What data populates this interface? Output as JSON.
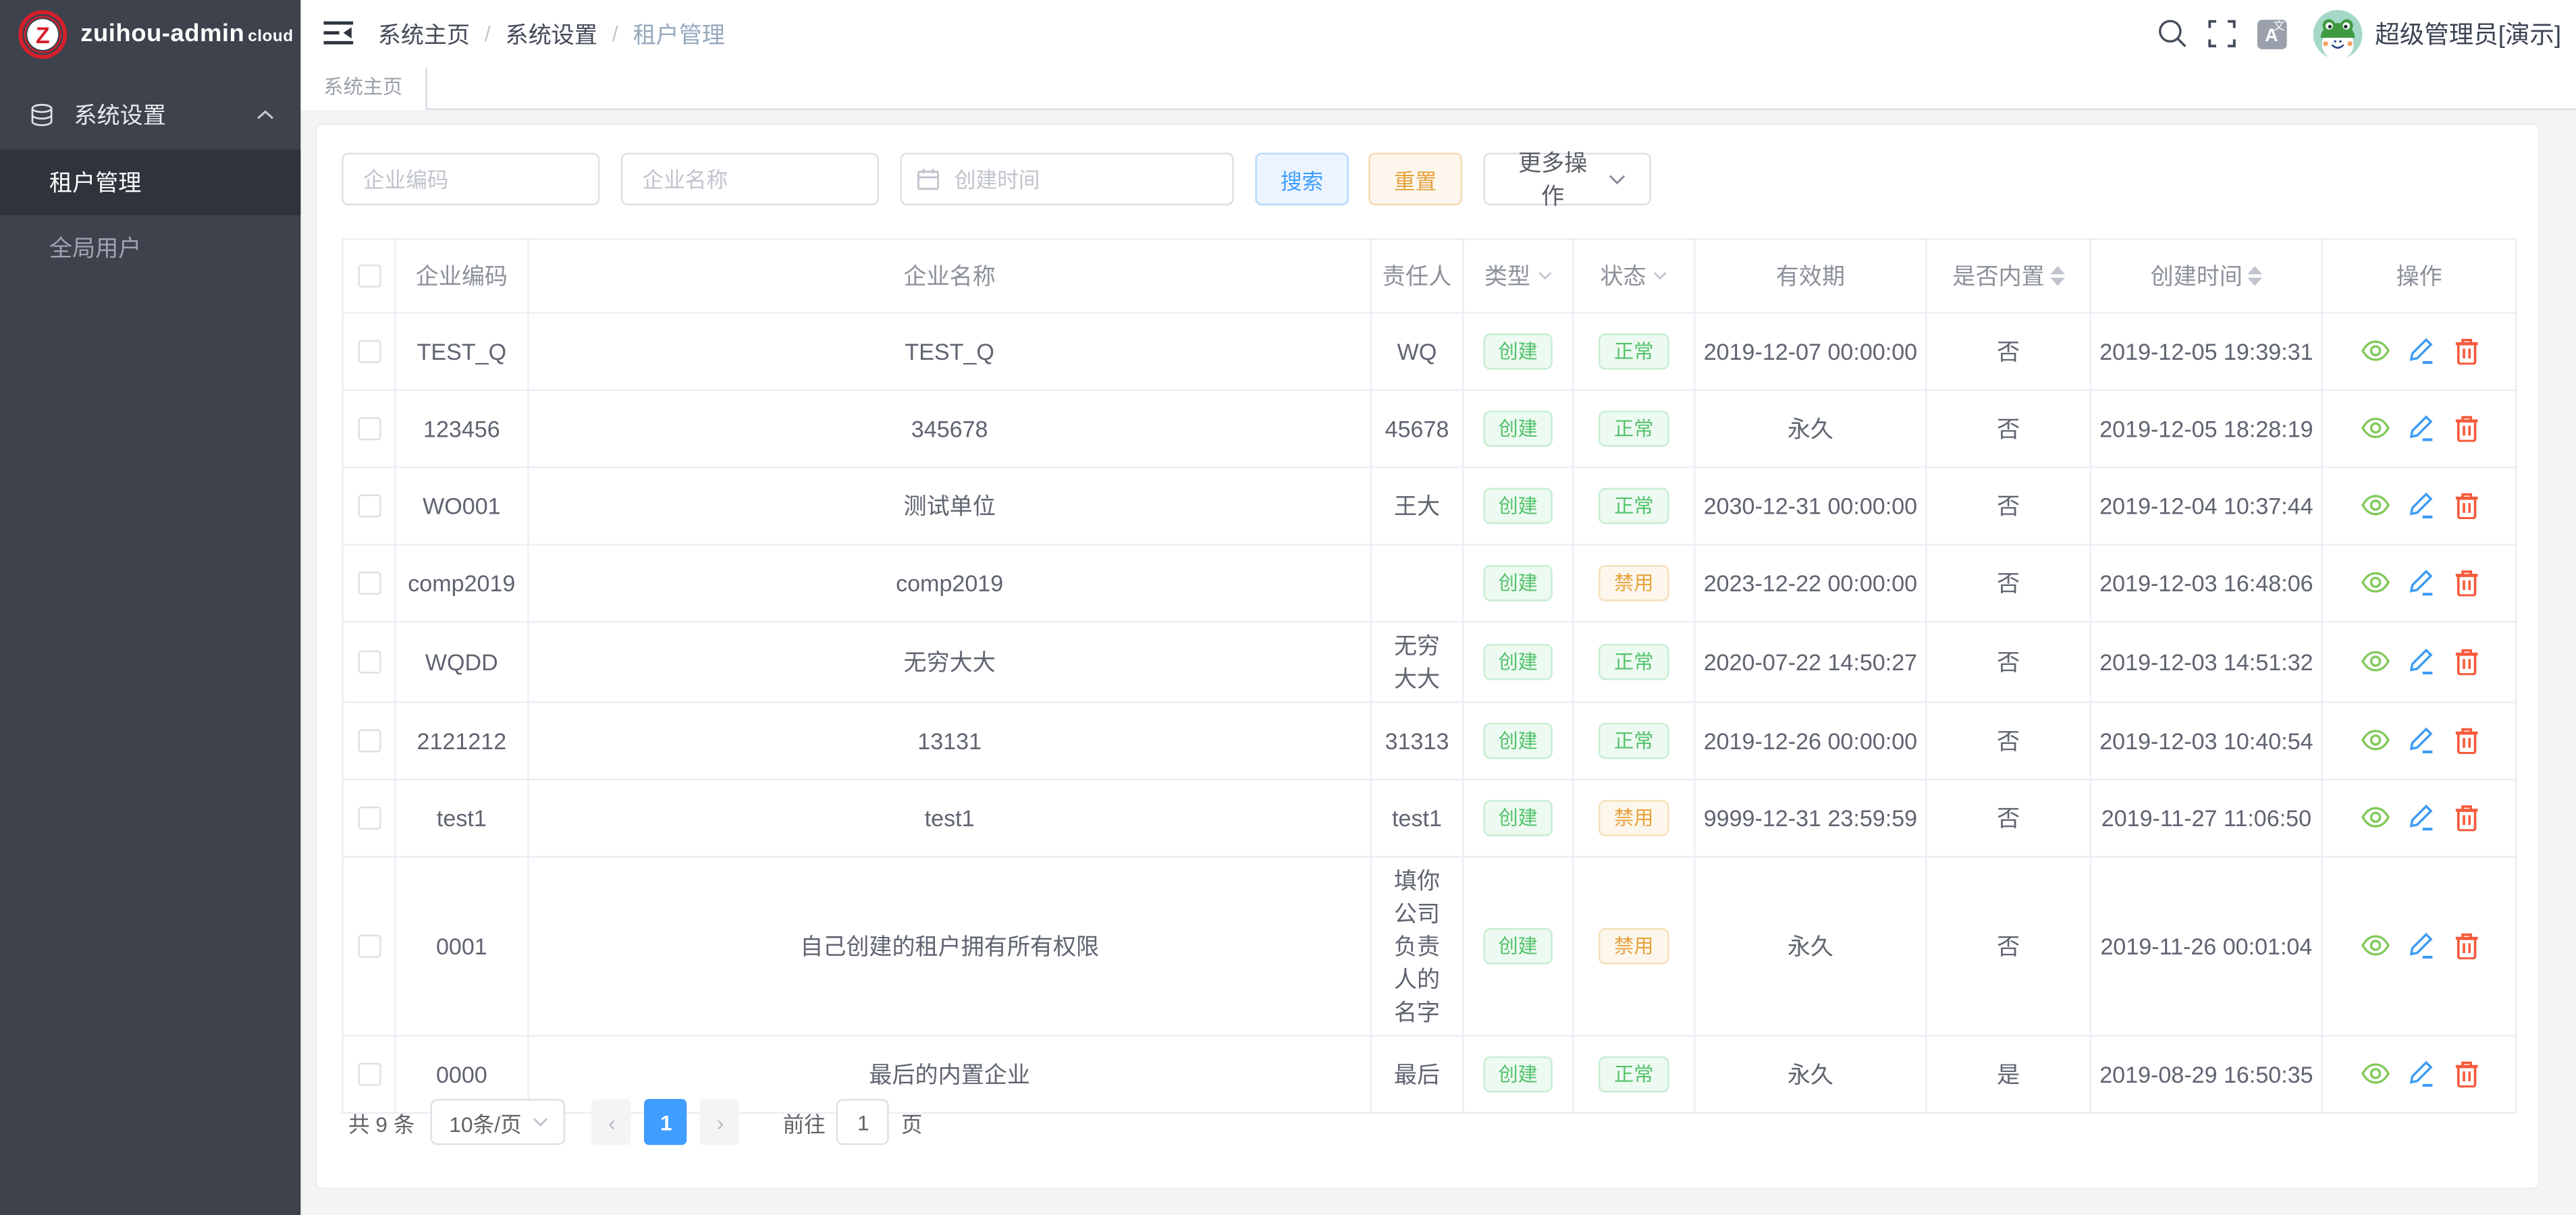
{
  "brand": {
    "name": "zuihou-admin",
    "suffix": "cloud",
    "logo_letter": "Z"
  },
  "breadcrumb": {
    "items": [
      "系统主页",
      "系统设置",
      "租户管理"
    ]
  },
  "topbar": {
    "user_name": "超级管理员[演示]"
  },
  "sidebar": {
    "group_label": "系统设置",
    "items": [
      {
        "label": "租户管理",
        "active": true
      },
      {
        "label": "全局用户",
        "active": false
      }
    ]
  },
  "tabs": [
    {
      "label": "系统主页"
    }
  ],
  "search": {
    "code_placeholder": "企业编码",
    "name_placeholder": "企业名称",
    "time_placeholder": "创建时间",
    "search_label": "搜索",
    "reset_label": "重置",
    "more_label": "更多操作"
  },
  "table": {
    "columns": [
      {
        "label": "",
        "kind": "checkbox",
        "width": 32
      },
      {
        "label": "企业编码",
        "width": 81
      },
      {
        "label": "企业名称",
        "width": 0
      },
      {
        "label": "责任人",
        "width": 56
      },
      {
        "label": "类型",
        "filter": true,
        "width": 67
      },
      {
        "label": "状态",
        "filter": true,
        "width": 74
      },
      {
        "label": "有效期",
        "width": 141
      },
      {
        "label": "是否内置",
        "sort": true,
        "width": 100
      },
      {
        "label": "创建时间",
        "sort": true,
        "width": 141
      },
      {
        "label": "操作",
        "width": 118
      }
    ],
    "rows": [
      {
        "code": "TEST_Q",
        "name": "TEST_Q",
        "owner": "WQ",
        "type": "创建",
        "status": "正常",
        "status_kind": "success",
        "expiry": "2019-12-07 00:00:00",
        "builtin": "否",
        "created": "2019-12-05 19:39:31"
      },
      {
        "code": "123456",
        "name": "345678",
        "owner": "45678",
        "type": "创建",
        "status": "正常",
        "status_kind": "success",
        "expiry": "永久",
        "builtin": "否",
        "created": "2019-12-05 18:28:19"
      },
      {
        "code": "WO001",
        "name": "测试单位",
        "owner": "王大",
        "type": "创建",
        "status": "正常",
        "status_kind": "success",
        "expiry": "2030-12-31 00:00:00",
        "builtin": "否",
        "created": "2019-12-04 10:37:44"
      },
      {
        "code": "comp2019",
        "name": "comp2019",
        "owner": "",
        "type": "创建",
        "status": "禁用",
        "status_kind": "warning",
        "expiry": "2023-12-22 00:00:00",
        "builtin": "否",
        "created": "2019-12-03 16:48:06"
      },
      {
        "code": "WQDD",
        "name": "无穷大大",
        "owner": "无穷大大",
        "type": "创建",
        "status": "正常",
        "status_kind": "success",
        "expiry": "2020-07-22 14:50:27",
        "builtin": "否",
        "created": "2019-12-03 14:51:32"
      },
      {
        "code": "2121212",
        "name": "13131",
        "owner": "31313",
        "type": "创建",
        "status": "正常",
        "status_kind": "success",
        "expiry": "2019-12-26 00:00:00",
        "builtin": "否",
        "created": "2019-12-03 10:40:54"
      },
      {
        "code": "test1",
        "name": "test1",
        "owner": "test1",
        "type": "创建",
        "status": "禁用",
        "status_kind": "warning",
        "expiry": "9999-12-31 23:59:59",
        "builtin": "否",
        "created": "2019-11-27 11:06:50"
      },
      {
        "code": "0001",
        "name": "自己创建的租户拥有所有权限",
        "owner": "填你公司负责人的名字",
        "type": "创建",
        "status": "禁用",
        "status_kind": "warning",
        "expiry": "永久",
        "builtin": "否",
        "created": "2019-11-26 00:01:04",
        "tall": true
      },
      {
        "code": "0000",
        "name": "最后的内置企业",
        "owner": "最后",
        "type": "创建",
        "status": "正常",
        "status_kind": "success",
        "expiry": "永久",
        "builtin": "是",
        "created": "2019-08-29 16:50:35"
      }
    ],
    "row_actions": [
      {
        "name": "view",
        "icon": "eye-icon",
        "color": "#82c85a"
      },
      {
        "name": "edit",
        "icon": "pencil-icon",
        "color": "#3c9bf5"
      },
      {
        "name": "delete",
        "icon": "trash-icon",
        "color": "#f55a3c"
      }
    ]
  },
  "pagination": {
    "total_label": "共 9 条",
    "page_size_label": "10条/页",
    "prev_label": "‹",
    "current_page": "1",
    "next_label": "›",
    "goto_label": "前往",
    "goto_value": "1",
    "page_unit": "页"
  },
  "colors": {
    "sidebar_bg": "#3d424d",
    "sidebar_active_bg": "#2e333c",
    "primary": "#409eff",
    "success": "#53c26c",
    "warning": "#e6a23c",
    "danger": "#f55a3c",
    "logo_red": "#d61f2c",
    "content_bg": "#f4f4f5",
    "border": "#ebeef5"
  }
}
